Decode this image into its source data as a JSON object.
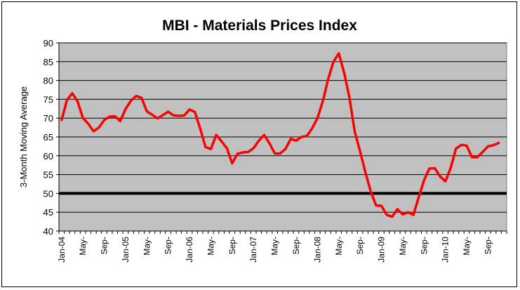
{
  "chart_data": {
    "type": "line",
    "title": "MBI - Materials Prices Index",
    "ylabel": "3-Month Moving Average",
    "xlabel": "",
    "ylim": [
      40,
      90
    ],
    "yticks": [
      40,
      45,
      50,
      55,
      60,
      65,
      70,
      75,
      80,
      85,
      90
    ],
    "grid": true,
    "legend": "none",
    "plot_background": "#C0C0C0",
    "series_color": "#FF0000",
    "reference_line_color": "#000000",
    "x_tick_labels": [
      "Jan-04",
      "May-",
      "Sep-",
      "Jan-05",
      "May-",
      "Sep-",
      "Jan-06",
      "May-",
      "Sep-",
      "Jan-07",
      "May-",
      "Sep-",
      "Jan-08",
      "May-",
      "Sep-",
      "Jan-09",
      "May-",
      "Sep-",
      "Jan-10",
      "May-",
      "Sep-"
    ],
    "x_tick_start_month": 0,
    "x_tick_step_months": 4,
    "x_months_total": 84,
    "reference_line": {
      "y": 50
    },
    "series": [
      {
        "values": [
          69.5,
          74.8,
          76.6,
          74.4,
          70.0,
          68.5,
          66.5,
          67.5,
          69.5,
          70.4,
          70.5,
          69.2,
          72.4,
          74.6,
          75.9,
          75.4,
          71.8,
          70.9,
          69.9,
          70.8,
          71.7,
          70.7,
          70.6,
          70.7,
          72.3,
          71.6,
          67.2,
          62.3,
          61.8,
          65.5,
          63.8,
          62.0,
          58.0,
          60.5,
          60.9,
          61.0,
          62.0,
          64.0,
          65.5,
          63.3,
          60.6,
          60.6,
          61.8,
          64.5,
          64.0,
          65.0,
          65.2,
          67.3,
          70.0,
          74.5,
          80.3,
          85.0,
          87.2,
          82.1,
          75.5,
          66.4,
          61.2,
          55.6,
          50.5,
          46.8,
          46.7,
          44.3,
          43.8,
          45.8,
          44.4,
          45.0,
          44.3,
          49.0,
          53.5,
          56.6,
          56.7,
          54.5,
          53.2,
          56.8,
          61.9,
          62.9,
          62.7,
          59.6,
          59.6,
          61.0,
          62.5,
          62.8,
          63.4
        ]
      }
    ]
  }
}
